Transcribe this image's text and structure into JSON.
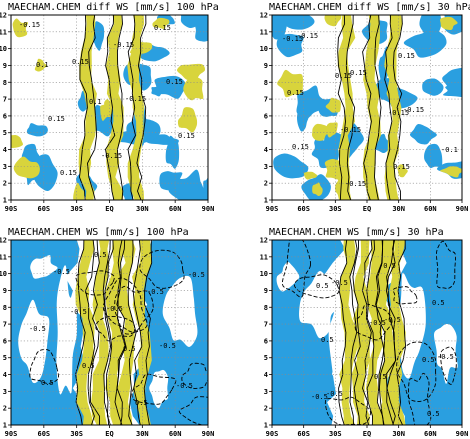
{
  "colors": {
    "positive": "#d8d43c",
    "negative": "#2a9fe0",
    "background": "#ffffff",
    "grid": "#8a8a8a"
  },
  "chart_data": [
    {
      "type": "heatmap",
      "title": "MAECHAM.CHEM diff WS [mm/s] 100 hPa",
      "x_ticks": [
        "90S",
        "60S",
        "30S",
        "EQ",
        "30N",
        "60N",
        "90N"
      ],
      "y_ticks": [
        "1",
        "2",
        "3",
        "4",
        "5",
        "6",
        "7",
        "8",
        "9",
        "10",
        "11",
        "12"
      ],
      "xlim": [
        -90,
        90
      ],
      "ylim": [
        1,
        12
      ],
      "levels": [
        -0.15,
        0.15
      ],
      "contour_labels": [
        "-0.15",
        "0.15",
        "-0.15",
        "0.15",
        "0.15",
        "-0.15",
        "0.15",
        "0.15",
        "-0.15",
        "0.15",
        "0.1",
        "0.1"
      ],
      "grid": true,
      "shading": {
        "positive_above": 0.15,
        "negative_below": -0.15
      }
    },
    {
      "type": "heatmap",
      "title": "MAECHAM.CHEM diff WS [mm/s] 30 hPa",
      "x_ticks": [
        "90S",
        "60S",
        "30S",
        "EQ",
        "30N",
        "60N",
        "90N"
      ],
      "y_ticks": [
        "1",
        "2",
        "3",
        "4",
        "5",
        "6",
        "7",
        "8",
        "9",
        "10",
        "11",
        "12"
      ],
      "xlim": [
        -90,
        90
      ],
      "ylim": [
        1,
        12
      ],
      "levels": [
        -0.15,
        0.15
      ],
      "contour_labels": [
        "-0.15",
        "0.15",
        "-0.15",
        "0.15",
        "-0.15",
        "0.15",
        "0.15",
        "-0.15",
        "0.15",
        "-0.15",
        "0.15",
        "-0.15",
        "-0.1"
      ],
      "grid": true,
      "shading": {
        "positive_above": 0.15,
        "negative_below": -0.15
      }
    },
    {
      "type": "heatmap",
      "title": "MAECHAM.CHEM WS [mm/s] 100 hPa",
      "x_ticks": [
        "90S",
        "60S",
        "30S",
        "EQ",
        "30N",
        "60N",
        "90N"
      ],
      "y_ticks": [
        "1",
        "2",
        "3",
        "4",
        "5",
        "6",
        "7",
        "8",
        "9",
        "10",
        "11",
        "12"
      ],
      "xlim": [
        -90,
        90
      ],
      "ylim": [
        1,
        12
      ],
      "levels": [
        -0.5,
        0.5
      ],
      "contour_labels": [
        "-0.5",
        "-0.5",
        "-0.5",
        "0.5",
        "0.5",
        "-0.5",
        "-0.5",
        "0.5",
        "0.5",
        "-0.5",
        "-0.5",
        "0.5",
        "-0.5"
      ],
      "grid": true,
      "shading": {
        "positive_above": 0.5,
        "negative_below": -0.5
      }
    },
    {
      "type": "heatmap",
      "title": "MAECHAM.CHEM WS [mm/s] 30 hPa",
      "x_ticks": [
        "90S",
        "60S",
        "30S",
        "EQ",
        "30N",
        "60N",
        "90N"
      ],
      "y_ticks": [
        "1",
        "2",
        "3",
        "4",
        "5",
        "6",
        "7",
        "8",
        "9",
        "10",
        "11",
        "12"
      ],
      "xlim": [
        -90,
        90
      ],
      "ylim": [
        1,
        12
      ],
      "levels": [
        -0.5,
        0.5
      ],
      "contour_labels": [
        "-0.5",
        "-0.5",
        "-0.5",
        "-0.5",
        "-0.5",
        "0.5",
        "0.5",
        "0.5",
        "0.5",
        "0.5",
        "-0.5",
        "0.5",
        "-0.5"
      ],
      "grid": true,
      "shading": {
        "positive_above": 0.5,
        "negative_below": -0.5
      }
    }
  ]
}
